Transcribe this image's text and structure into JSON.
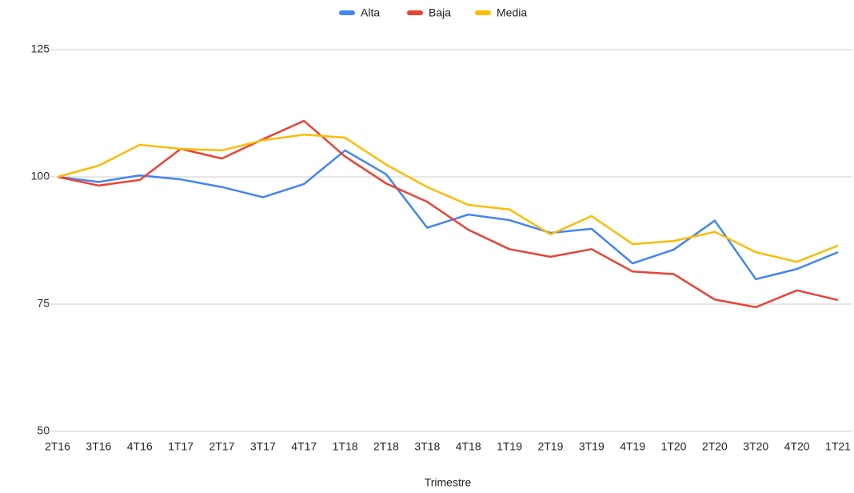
{
  "chart_data": {
    "type": "line",
    "x_label": "Trimestre",
    "categories": [
      "2T16",
      "3T16",
      "4T16",
      "1T17",
      "2T17",
      "3T17",
      "4T17",
      "1T18",
      "2T18",
      "3T18",
      "4T18",
      "1T19",
      "2T19",
      "3T19",
      "4T19",
      "1T20",
      "2T20",
      "3T20",
      "4T20",
      "1T21"
    ],
    "series": [
      {
        "name": "Alta",
        "color": "#4285f4",
        "values": [
          100,
          99,
          100.3,
          99.5,
          98,
          96,
          98.6,
          105.2,
          100.5,
          90,
          92.6,
          91.5,
          89,
          89.8,
          83,
          85.7,
          91.4,
          79.9,
          81.9,
          85.2
        ]
      },
      {
        "name": "Baja",
        "color": "#ea4335",
        "values": [
          100,
          98.3,
          99.4,
          105.5,
          103.6,
          107.4,
          111,
          104,
          98.7,
          95.1,
          89.6,
          85.8,
          84.3,
          85.8,
          81.4,
          80.9,
          75.9,
          74.4,
          77.7,
          75.8
        ]
      },
      {
        "name": "Media",
        "color": "#fbbc04",
        "values": [
          100,
          102.2,
          106.3,
          105.5,
          105.2,
          107.2,
          108.3,
          107.7,
          102.4,
          98,
          94.5,
          93.6,
          88.7,
          92.3,
          86.8,
          87.4,
          89.2,
          85.2,
          83.3,
          86.5
        ]
      }
    ],
    "ylim": [
      50,
      125
    ],
    "yticks": [
      50,
      75,
      100,
      125
    ],
    "grid": true,
    "legend": "top"
  }
}
